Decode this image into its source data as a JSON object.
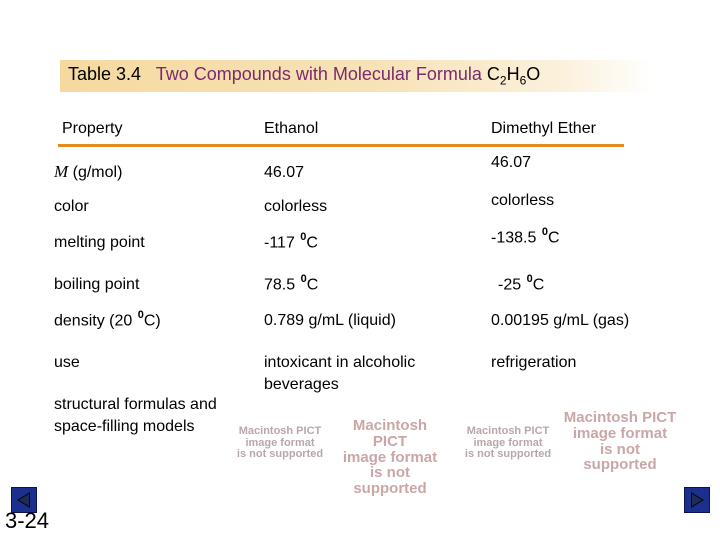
{
  "title": {
    "number": "Table 3.4",
    "name": "Two Compounds with Molecular Formula",
    "formula": {
      "c": "C",
      "c_sub": "2",
      "h": "H",
      "h_sub": "6",
      "o": "O"
    }
  },
  "columns": {
    "property": "Property",
    "ethanol": "Ethanol",
    "ether": "Dimethyl Ether"
  },
  "rows": [
    {
      "property_main": "M",
      "property_rest": " (g/mol)",
      "ethanol": "46.07",
      "ether": "46.07"
    },
    {
      "property": "color",
      "ethanol": "colorless",
      "ether": "colorless"
    },
    {
      "property": "melting point",
      "ethanol_value": "-117",
      "ethanol_unit": "C",
      "ether_value": "-138.5",
      "ether_unit": "C",
      "deg": "0"
    },
    {
      "property": "boiling point",
      "ethanol_value": "78.5",
      "ethanol_unit": "C",
      "ether_value": "-25",
      "ether_unit": "C",
      "deg": "0"
    },
    {
      "property_pre": "density (20",
      "property_post": "C)",
      "deg": "0",
      "ethanol": "0.789 g/mL (liquid)",
      "ether": "0.00195 g/mL (gas)"
    },
    {
      "property": "use",
      "ethanol": "intoxicant in alcoholic beverages",
      "ether": "refrigeration"
    }
  ],
  "structural_label": "structural formulas and space-filling models",
  "pict_notice": {
    "line1": "Macintosh PICT",
    "line2": "image format",
    "line3": "is not supported"
  },
  "page_number": "3-24",
  "colors": {
    "accent_rule": "#e58a1f",
    "title_name": "#7a2a6d",
    "nav_button": "#1b2f8f"
  },
  "nav": {
    "prev_icon": "triangle-left-icon",
    "next_icon": "triangle-right-icon"
  }
}
